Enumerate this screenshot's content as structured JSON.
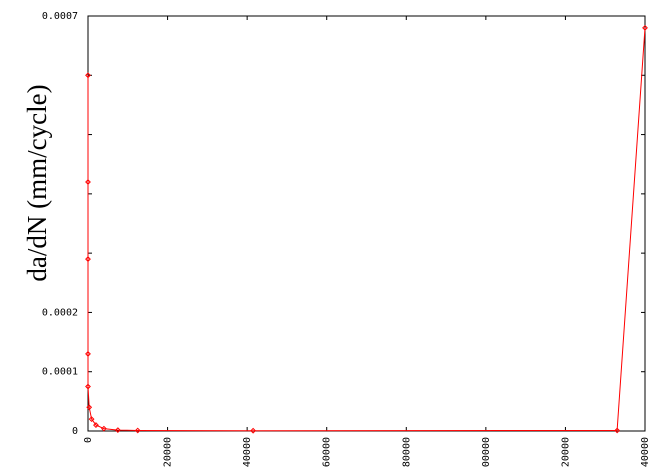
{
  "chart_data": {
    "type": "line",
    "title": "",
    "xlabel": "",
    "ylabel": "da/dN (mm/cycle)",
    "xlim": [
      0,
      140000
    ],
    "ylim": [
      0,
      0.0007
    ],
    "x_tick_labels": [
      "0",
      "20000",
      "40000",
      "60000",
      "80000",
      "00000",
      "20000",
      "40000"
    ],
    "y_tick_labels": [
      "0",
      "0.0001",
      "0.0002",
      "0.0007"
    ],
    "y_tick_minor_count": 6,
    "grid": false,
    "series": [
      {
        "color": "#ff0000",
        "marker": "open-diamond",
        "points": [
          {
            "x": 0,
            "y": 0.0006
          },
          {
            "x": 0,
            "y": 0.00042
          },
          {
            "x": 0,
            "y": 0.00029
          },
          {
            "x": 0,
            "y": 0.00013
          },
          {
            "x": 0,
            "y": 7.5e-05
          },
          {
            "x": 300,
            "y": 4e-05
          },
          {
            "x": 900,
            "y": 2e-05
          },
          {
            "x": 2000,
            "y": 1e-05
          },
          {
            "x": 4000,
            "y": 4e-06
          },
          {
            "x": 7500,
            "y": 1.5e-06
          },
          {
            "x": 12500,
            "y": 8e-07
          },
          {
            "x": 41500,
            "y": 5e-07
          },
          {
            "x": 133000,
            "y": 8e-07
          },
          {
            "x": 140000,
            "y": 0.00068
          }
        ]
      }
    ]
  }
}
